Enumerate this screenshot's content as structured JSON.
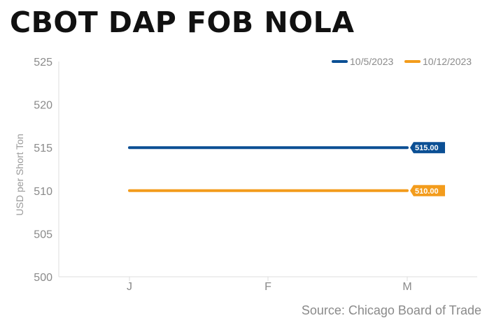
{
  "title": "CBOT DAP FOB NOLA",
  "source": "Source: Chicago Board of Trade",
  "chart_data": {
    "type": "line",
    "title": "CBOT DAP FOB NOLA",
    "categories": [
      "J",
      "F",
      "M"
    ],
    "xlabel": "",
    "ylabel": "USD per Short Ton",
    "ylim": [
      500,
      525
    ],
    "yticks": [
      500,
      505,
      510,
      515,
      520,
      525
    ],
    "grid": false,
    "legend_position": "top-right",
    "series": [
      {
        "name": "10/5/2023",
        "color": "#0b4f94",
        "values": [
          515,
          515,
          515
        ],
        "end_label": "515.00"
      },
      {
        "name": "10/12/2023",
        "color": "#f39c1c",
        "values": [
          510,
          510,
          510
        ],
        "end_label": "510.00"
      }
    ]
  }
}
